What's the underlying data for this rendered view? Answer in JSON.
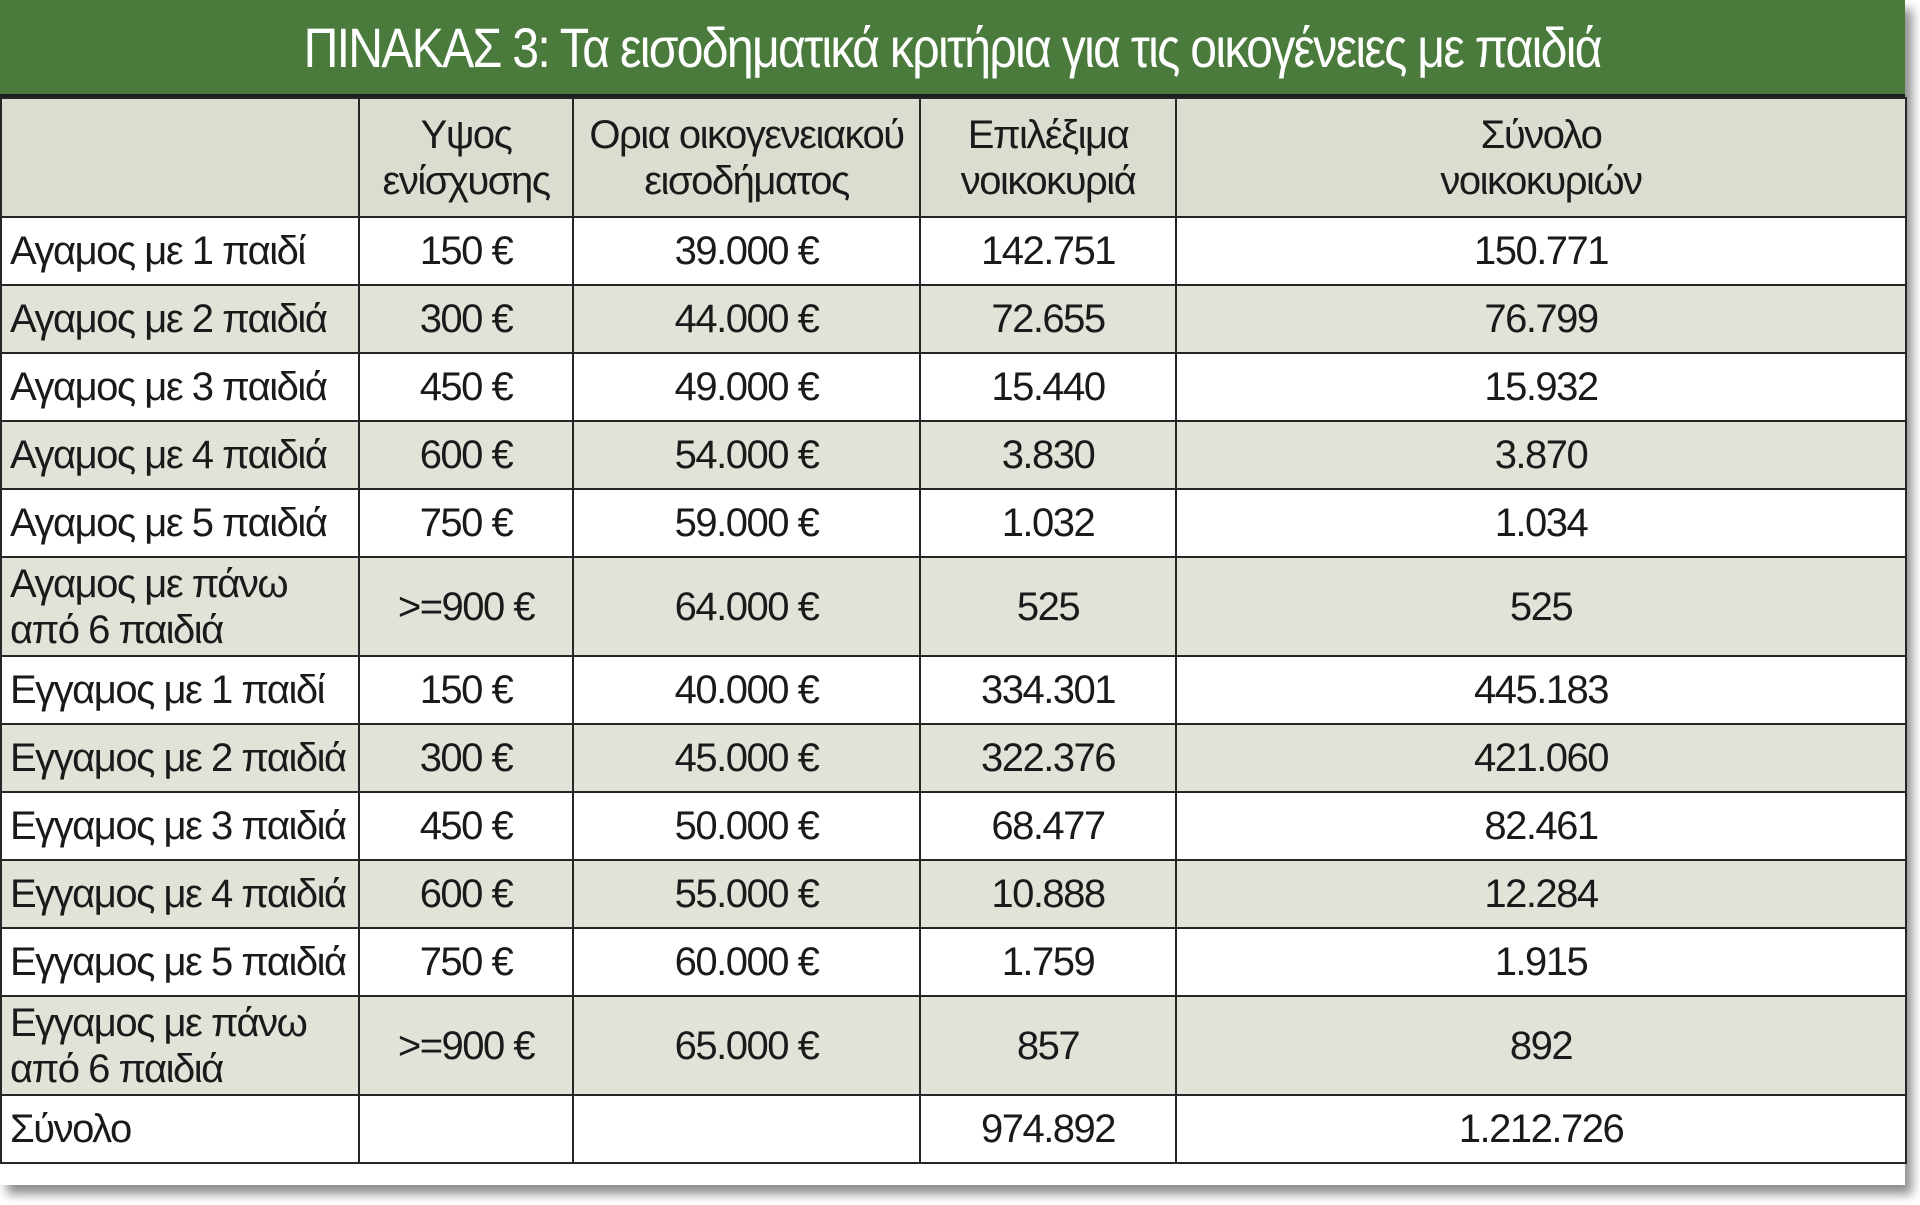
{
  "title": "ΠΙΝΑΚΑΣ 3: Τα εισοδηματικά κριτήρια για τις οικογένειες με παιδιά",
  "colors": {
    "title_background": "#4a7a3c",
    "title_text": "#ffffff",
    "header_background": "#dcdcd0",
    "row_shading": "#e2e2d8"
  },
  "chart_data": {
    "type": "table",
    "columns": [
      "",
      "Υψος ενίσχυσης",
      "Ορια οικογενειακού εισοδήματος",
      "Επιλέξιμα νοικοκυριά",
      "Σύνολο νοικοκυριών"
    ],
    "columns_lines": [
      [
        ""
      ],
      [
        "Υψος",
        "ενίσχυσης"
      ],
      [
        "Ορια οικογενειακού",
        "εισοδήματος"
      ],
      [
        "Επιλέξιμα",
        "νοικοκυριά"
      ],
      [
        "Σύνολο",
        "νοικοκυριών"
      ]
    ],
    "rows": [
      {
        "label": [
          "Αγαμος με 1 παιδί"
        ],
        "support": "150 €",
        "income_limit": "39.000 €",
        "eligible": "142.751",
        "total": "150.771"
      },
      {
        "label": [
          "Αγαμος με 2 παιδιά"
        ],
        "support": "300 €",
        "income_limit": "44.000 €",
        "eligible": "72.655",
        "total": "76.799"
      },
      {
        "label": [
          "Αγαμος με 3 παιδιά"
        ],
        "support": "450 €",
        "income_limit": "49.000 €",
        "eligible": "15.440",
        "total": "15.932"
      },
      {
        "label": [
          "Αγαμος με 4 παιδιά"
        ],
        "support": "600 €",
        "income_limit": "54.000 €",
        "eligible": "3.830",
        "total": "3.870"
      },
      {
        "label": [
          "Αγαμος με 5 παιδιά"
        ],
        "support": "750 €",
        "income_limit": "59.000 €",
        "eligible": "1.032",
        "total": "1.034"
      },
      {
        "label": [
          "Αγαμος με πάνω",
          "από 6 παιδιά"
        ],
        "support": ">=900 €",
        "income_limit": "64.000 €",
        "eligible": "525",
        "total": "525"
      },
      {
        "label": [
          "Εγγαμος με 1 παιδί"
        ],
        "support": "150 €",
        "income_limit": "40.000 €",
        "eligible": "334.301",
        "total": "445.183"
      },
      {
        "label": [
          "Εγγαμος με 2 παιδιά"
        ],
        "support": "300 €",
        "income_limit": "45.000 €",
        "eligible": "322.376",
        "total": "421.060"
      },
      {
        "label": [
          "Εγγαμος με 3 παιδιά"
        ],
        "support": "450 €",
        "income_limit": "50.000 €",
        "eligible": "68.477",
        "total": "82.461"
      },
      {
        "label": [
          "Εγγαμος με 4 παιδιά"
        ],
        "support": "600 €",
        "income_limit": "55.000 €",
        "eligible": "10.888",
        "total": "12.284"
      },
      {
        "label": [
          "Εγγαμος με 5 παιδιά"
        ],
        "support": "750 €",
        "income_limit": "60.000 €",
        "eligible": "1.759",
        "total": "1.915"
      },
      {
        "label": [
          "Εγγαμος με πάνω",
          "από 6 παιδιά"
        ],
        "support": ">=900 €",
        "income_limit": "65.000 €",
        "eligible": "857",
        "total": "892"
      },
      {
        "label": [
          "Σύνολο"
        ],
        "support": "",
        "income_limit": "",
        "eligible": "974.892",
        "total": "1.212.726"
      }
    ]
  }
}
